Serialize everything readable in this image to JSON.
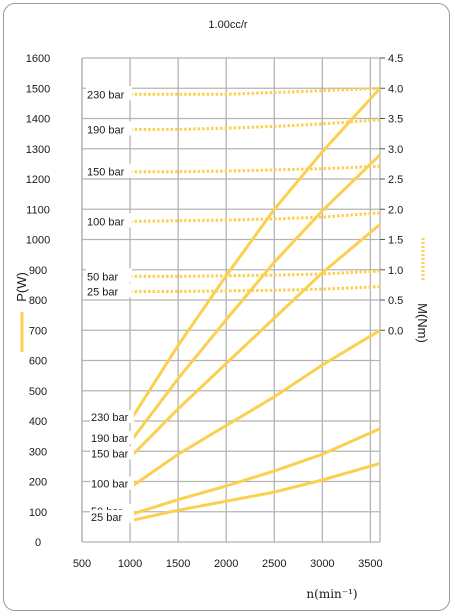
{
  "chart_data": {
    "type": "line",
    "title": "1.00cc/r",
    "xlabel": "n(min⁻¹)",
    "ylabel_left": "P(W)",
    "ylabel_right": "M(Nm)",
    "x_ticks": [
      "500",
      "1000",
      "1500",
      "2000",
      "2500",
      "3000",
      "3500"
    ],
    "y_left_ticks": [
      "0",
      "100",
      "200",
      "300",
      "400",
      "500",
      "600",
      "700",
      "800",
      "900",
      "1000",
      "1100",
      "1200",
      "1300",
      "1400",
      "1500",
      "1600"
    ],
    "y_right_ticks": [
      "0.0",
      "0.5",
      "1.0",
      "1.5",
      "2.0",
      "2.5",
      "3.0",
      "3.5",
      "4.0",
      "4.5"
    ],
    "xlim": [
      500,
      3600
    ],
    "grid": true,
    "colors": {
      "curve": "#fcd04f",
      "grid": "#b4b4b4",
      "frame": "#9a9a9a"
    },
    "power_series": [
      {
        "name": "230 bar",
        "x": [
          1000,
          1500,
          2000,
          2500,
          3000,
          3600
        ],
        "y": [
          400,
          650,
          880,
          1100,
          1290,
          1500
        ]
      },
      {
        "name": "190 bar",
        "x": [
          1000,
          1500,
          2000,
          2500,
          3000,
          3600
        ],
        "y": [
          330,
          540,
          735,
          925,
          1095,
          1280
        ]
      },
      {
        "name": "150 bar",
        "x": [
          1000,
          1500,
          2000,
          2500,
          3000,
          3600
        ],
        "y": [
          280,
          440,
          590,
          740,
          890,
          1050
        ]
      },
      {
        "name": "100 bar",
        "x": [
          1000,
          1500,
          2000,
          2500,
          3000,
          3600
        ],
        "y": [
          180,
          290,
          385,
          480,
          585,
          700
        ]
      },
      {
        "name": "50 bar",
        "x": [
          1000,
          1500,
          2000,
          2500,
          3000,
          3600
        ],
        "y": [
          90,
          140,
          185,
          235,
          290,
          375
        ]
      },
      {
        "name": "25 bar",
        "x": [
          1000,
          1500,
          2000,
          2500,
          3000,
          3600
        ],
        "y": [
          70,
          105,
          135,
          165,
          205,
          260
        ]
      }
    ],
    "torque_series": [
      {
        "name": "230 bar",
        "x": [
          1000,
          1500,
          2000,
          2500,
          3000,
          3600
        ],
        "y": [
          3.9,
          3.9,
          3.9,
          3.93,
          3.96,
          4.0
        ]
      },
      {
        "name": "190 bar",
        "x": [
          1000,
          1500,
          2000,
          2500,
          3000,
          3600
        ],
        "y": [
          3.32,
          3.32,
          3.34,
          3.37,
          3.41,
          3.48
        ]
      },
      {
        "name": "150 bar",
        "x": [
          1000,
          1500,
          2000,
          2500,
          3000,
          3600
        ],
        "y": [
          2.62,
          2.62,
          2.63,
          2.65,
          2.67,
          2.71
        ]
      },
      {
        "name": "100 bar",
        "x": [
          1000,
          1500,
          2000,
          2500,
          3000,
          3600
        ],
        "y": [
          1.8,
          1.81,
          1.82,
          1.84,
          1.87,
          1.94
        ]
      },
      {
        "name": "50 bar",
        "x": [
          1000,
          1500,
          2000,
          2500,
          3000,
          3600
        ],
        "y": [
          0.89,
          0.89,
          0.9,
          0.91,
          0.93,
          0.98
        ]
      },
      {
        "name": "25 bar",
        "x": [
          1000,
          1500,
          2000,
          2500,
          3000,
          3600
        ],
        "y": [
          0.64,
          0.64,
          0.65,
          0.66,
          0.68,
          0.72
        ]
      }
    ]
  }
}
